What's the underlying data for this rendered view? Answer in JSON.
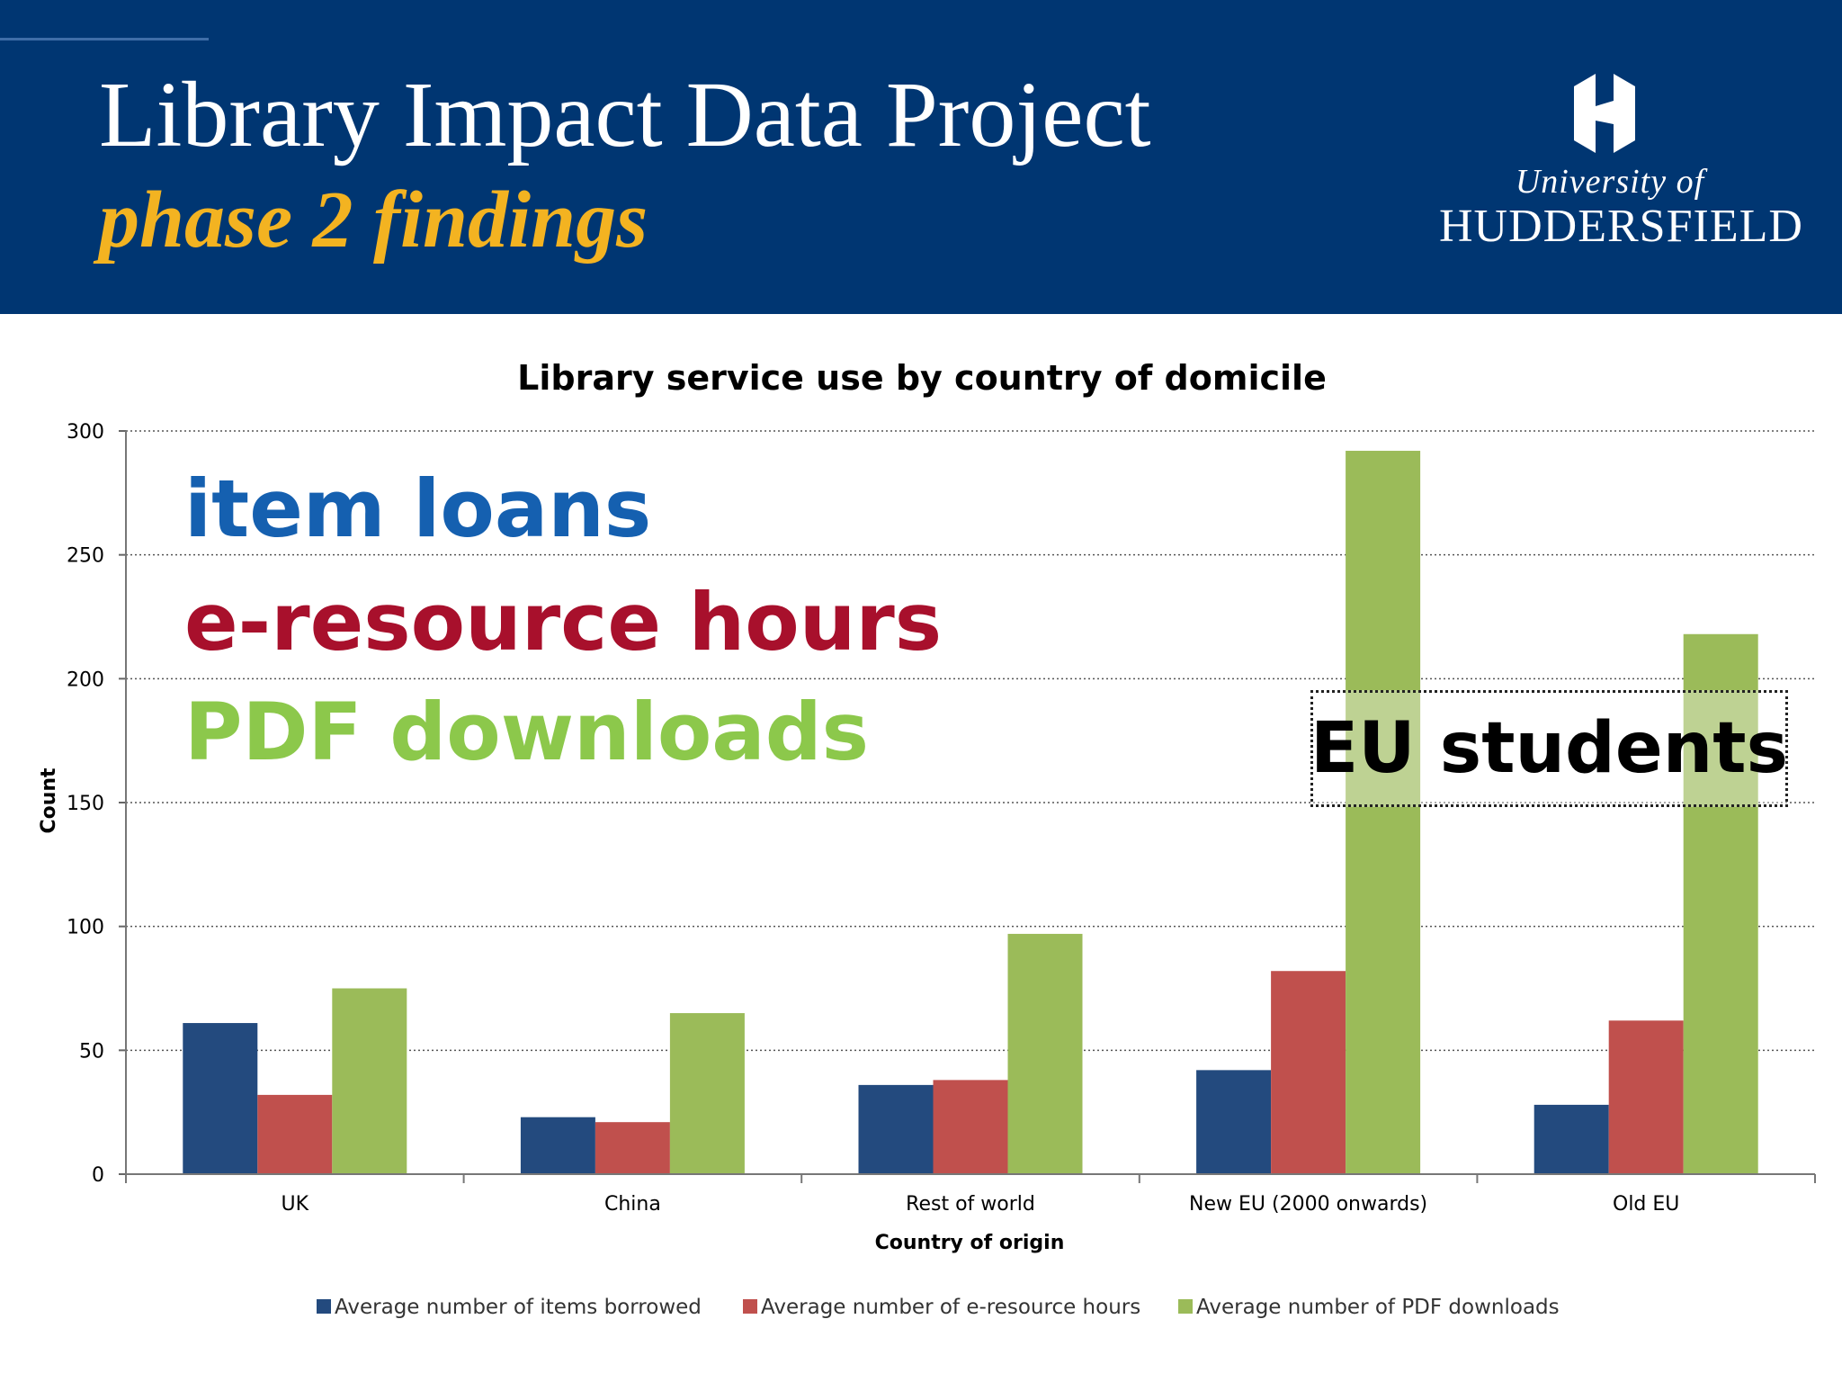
{
  "header": {
    "title": "Library Impact Data Project",
    "subtitle": "phase 2 findings",
    "logo_line1": "University of",
    "logo_line2": "HUDDERSFIELD",
    "background_color": "#003672",
    "subtitle_color": "#f3b321",
    "logo_icon": "huddersfield-emblem"
  },
  "overlay": {
    "loans": "item loans",
    "hours": "e-resource hours",
    "pdf": "PDF downloads",
    "highlight": "EU students",
    "colors": {
      "loans": "#1560b0",
      "hours": "#a8102c",
      "pdf": "#8cc84b"
    }
  },
  "chart_data": {
    "type": "bar",
    "title": "Library service use by country of domicile",
    "xlabel": "Country of origin",
    "ylabel": "Count",
    "categories": [
      "UK",
      "China",
      "Rest of world",
      "New EU (2000 onwards)",
      "Old EU"
    ],
    "series": [
      {
        "name": "Average number of items borrowed",
        "color": "#234a7e",
        "values": [
          61,
          23,
          36,
          42,
          28
        ]
      },
      {
        "name": "Average number of e-resource hours",
        "color": "#c0504d",
        "values": [
          32,
          21,
          38,
          82,
          62
        ]
      },
      {
        "name": "Average number of PDF downloads",
        "color": "#9bbb59",
        "values": [
          75,
          65,
          97,
          292,
          218
        ]
      }
    ],
    "ylim": [
      0,
      300
    ],
    "yticks": [
      0,
      50,
      100,
      150,
      200,
      250,
      300
    ],
    "grid": true,
    "legend": "bottom"
  }
}
